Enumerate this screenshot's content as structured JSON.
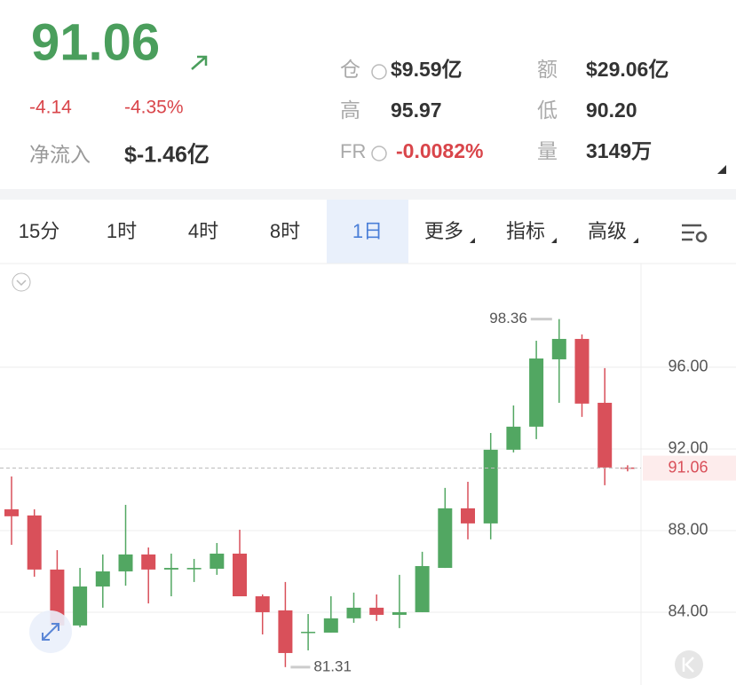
{
  "header": {
    "price": "91.06",
    "change": "-4.14",
    "change_pct": "-4.35%",
    "net_inflow_label": "净流入",
    "net_inflow": "$-1.46亿",
    "stats": [
      {
        "label": "仓",
        "value": "$9.59亿"
      },
      {
        "label": "额",
        "value": "$29.06亿"
      },
      {
        "label": "高",
        "value": "95.97"
      },
      {
        "label": "低",
        "value": "90.20"
      },
      {
        "label": "FR",
        "value": "-0.0082%"
      },
      {
        "label": "量",
        "value": "3149万"
      }
    ]
  },
  "tabs": [
    "15分",
    "1时",
    "4时",
    "8时",
    "1日",
    "更多",
    "指标",
    "高级"
  ],
  "chart_data": {
    "type": "candlestick",
    "up_color": "#52a762",
    "down_color": "#d9505a",
    "open": [
      89.04,
      88.74,
      86.09,
      83.35,
      85.26,
      86.0,
      86.83,
      86.09,
      86.1,
      86.13,
      86.87,
      84.78,
      84.09,
      83.0,
      83.0,
      83.7,
      84.22,
      83.87,
      84.0,
      86.17,
      89.09,
      88.35,
      91.96,
      93.09,
      96.39,
      97.39,
      94.26,
      91.09
    ],
    "high": [
      90.65,
      89.04,
      87.04,
      86.17,
      86.83,
      89.26,
      87.17,
      86.87,
      86.61,
      87.39,
      88.04,
      84.87,
      85.48,
      83.91,
      84.78,
      84.96,
      84.87,
      85.83,
      86.96,
      90.09,
      90.39,
      92.78,
      94.13,
      97.3,
      98.36,
      97.61,
      95.96,
      91.2
    ],
    "low": [
      87.3,
      85.74,
      83.04,
      83.26,
      84.22,
      85.3,
      84.43,
      84.78,
      85.48,
      85.83,
      84.78,
      82.91,
      81.31,
      82.13,
      83.0,
      83.48,
      83.57,
      83.22,
      84.0,
      86.17,
      87.57,
      87.57,
      91.83,
      92.48,
      94.26,
      93.57,
      90.22,
      90.9
    ],
    "close": [
      88.7,
      86.09,
      83.35,
      85.26,
      86.0,
      86.83,
      86.09,
      86.17,
      86.17,
      86.87,
      84.78,
      84.0,
      82.0,
      83.04,
      83.7,
      84.22,
      83.87,
      84.0,
      86.26,
      89.09,
      88.35,
      91.96,
      93.09,
      96.43,
      97.39,
      94.22,
      91.09,
      91.06
    ],
    "ylim": [
      80.52,
      101.04
    ],
    "yticks": [
      {
        "value": 84,
        "label": "84.00"
      },
      {
        "value": 88,
        "label": "88.00"
      },
      {
        "value": 92,
        "label": "92.00"
      },
      {
        "value": 96,
        "label": "96.00"
      }
    ],
    "grid": true
  }
}
